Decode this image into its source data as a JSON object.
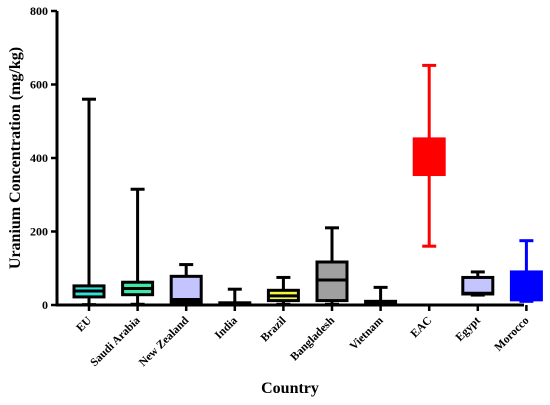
{
  "chart_data": {
    "type": "boxplot",
    "xlabel": "Country",
    "ylabel": "Uranium Concentration (mg/kg)",
    "ylim": [
      0,
      800
    ],
    "yticks": [
      0,
      200,
      400,
      600,
      800
    ],
    "grid": false,
    "legend": "none",
    "categories": [
      "EU",
      "Saudi Arabia",
      "New Zealand",
      "India",
      "Brazil",
      "Bangladesh",
      "Vietnam",
      "EAC",
      "Egypt",
      "Morocco"
    ],
    "boxes": [
      {
        "category": "EU",
        "min": 1,
        "q1": 22,
        "median": 38,
        "q3": 52,
        "max": 560,
        "fill": "#33E0D8",
        "stroke": "#000000"
      },
      {
        "category": "Saudi Arabia",
        "min": 2,
        "q1": 28,
        "median": 45,
        "q3": 62,
        "max": 315,
        "fill": "#3EE8A6",
        "stroke": "#000000"
      },
      {
        "category": "New Zealand",
        "min": 2,
        "q1": 8,
        "median": 15,
        "q3": 78,
        "max": 110,
        "fill": "#C4C4FF",
        "stroke": "#000000"
      },
      {
        "category": "India",
        "min": 1,
        "q1": 2,
        "median": 4,
        "q3": 6,
        "max": 43,
        "fill": "#8A8A8A",
        "stroke": "#000000"
      },
      {
        "category": "Brazil",
        "min": 2,
        "q1": 12,
        "median": 25,
        "q3": 40,
        "max": 75,
        "fill": "#F5F542",
        "stroke": "#000000"
      },
      {
        "category": "Bangladesh",
        "min": 2,
        "q1": 12,
        "median": 68,
        "q3": 117,
        "max": 210,
        "fill": "#A0A0A0",
        "stroke": "#000000"
      },
      {
        "category": "Vietnam",
        "min": 1,
        "q1": 2,
        "median": 5,
        "q3": 10,
        "max": 48,
        "fill": "#8A8A8A",
        "stroke": "#000000"
      },
      {
        "category": "EAC",
        "min": 160,
        "q1": 355,
        "median": 400,
        "q3": 452,
        "max": 652,
        "fill": "#FF0000",
        "stroke": "#FF0000"
      },
      {
        "category": "Egypt",
        "min": 27,
        "q1": 30,
        "median": 32,
        "q3": 75,
        "max": 90,
        "fill": "#C4C4FF",
        "stroke": "#000000"
      },
      {
        "category": "Morocco",
        "min": 10,
        "q1": 14,
        "median": 20,
        "q3": 90,
        "max": 175,
        "fill": "#0000FF",
        "stroke": "#0000FF"
      }
    ]
  }
}
